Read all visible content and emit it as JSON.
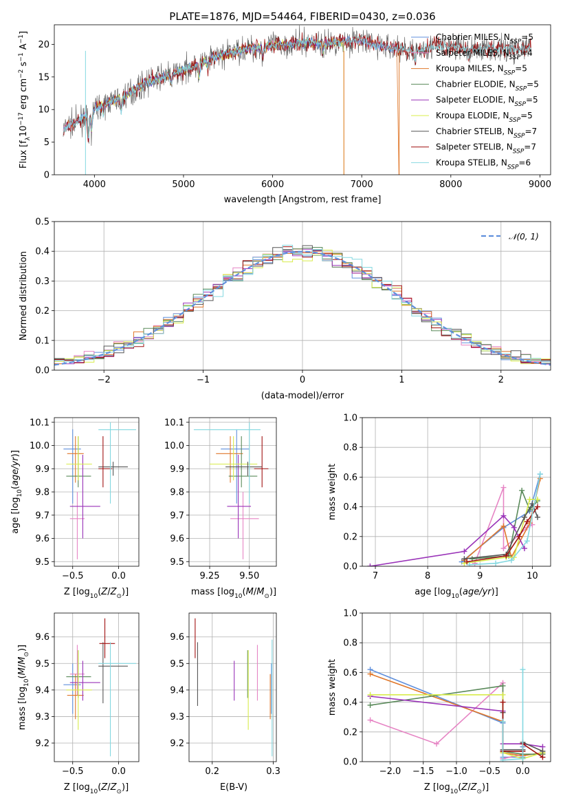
{
  "colors": {
    "chabrier_miles": "#5f8fdc",
    "salpeter_miles": "#e684c4",
    "kroupa_miles": "#e0772a",
    "chabrier_elodie": "#5a8a5a",
    "salpeter_elodie": "#9932b8",
    "kroupa_elodie": "#d8ec4a",
    "chabrier_stelib": "#555555",
    "salpeter_stelib": "#a01010",
    "kroupa_stelib": "#84d8e0"
  },
  "chart_data": [
    {
      "id": "spectrum",
      "type": "line",
      "title": "PLATE=1876, MJD=54464, FIBERID=0430, z=0.036",
      "xlabel": "wavelength [Angstrom, rest frame]",
      "ylabel": "Flux [f_λ 10^-17 erg cm^-2 s^-1 A^-1]",
      "xlim": [
        3550,
        9120
      ],
      "ylim": [
        0,
        23
      ],
      "xticks": [
        "4000",
        "5000",
        "6000",
        "7000",
        "8000",
        "9000"
      ],
      "yticks": [
        "0",
        "5",
        "10",
        "15",
        "20"
      ],
      "grid": false,
      "legend_position": "right",
      "legend": [
        {
          "name": "Chabrier MILES, N_SSP=5",
          "base": "Chabrier MILES, N",
          "sub": "SSP",
          "tail": "=5",
          "color_key": "chabrier_miles"
        },
        {
          "name": "Salpeter MILES, N_SSP=4",
          "base": "Salpeter MILES, N",
          "sub": "SSP",
          "tail": "=4",
          "color_key": "salpeter_miles"
        },
        {
          "name": "Kroupa MILES, N_SSP=5",
          "base": "Kroupa MILES, N",
          "sub": "SSP",
          "tail": "=5",
          "color_key": "kroupa_miles"
        },
        {
          "name": "Chabrier ELODIE, N_SSP=5",
          "base": "Chabrier ELODIE, N",
          "sub": "SSP",
          "tail": "=5",
          "color_key": "chabrier_elodie"
        },
        {
          "name": "Salpeter ELODIE, N_SSP=5",
          "base": "Salpeter ELODIE, N",
          "sub": "SSP",
          "tail": "=5",
          "color_key": "salpeter_elodie"
        },
        {
          "name": "Kroupa ELODIE, N_SSP=5",
          "base": "Kroupa ELODIE, N",
          "sub": "SSP",
          "tail": "=5",
          "color_key": "kroupa_elodie"
        },
        {
          "name": "Chabrier STELIB, N_SSP=7",
          "base": "Chabrier STELIB, N",
          "sub": "SSP",
          "tail": "=7",
          "color_key": "chabrier_stelib"
        },
        {
          "name": "Salpeter STELIB, N_SSP=7",
          "base": "Salpeter STELIB, N",
          "sub": "SSP",
          "tail": "=7",
          "color_key": "salpeter_stelib"
        },
        {
          "name": "Kroupa STELIB, N_SSP=6",
          "base": "Kroupa STELIB, N",
          "sub": "SSP",
          "tail": "=6",
          "color_key": "kroupa_stelib"
        }
      ],
      "continuum": {
        "wavelength": [
          3650,
          3700,
          3800,
          3900,
          4000,
          4100,
          4200,
          4300,
          4400,
          4500,
          4600,
          4800,
          5000,
          5200,
          5400,
          5600,
          5800,
          6000,
          6200,
          6400,
          6600,
          6800,
          7000,
          7200,
          7400,
          7600,
          7800,
          8000,
          8200,
          8400,
          8600,
          8900
        ],
        "flux": [
          6.8,
          7.5,
          8.0,
          9.0,
          10.2,
          10.8,
          11.4,
          11.8,
          12.6,
          13.4,
          14.2,
          15.2,
          16.0,
          17.2,
          18.2,
          19.0,
          19.5,
          19.8,
          20.0,
          20.3,
          20.1,
          20.5,
          20.6,
          19.8,
          19.4,
          19.0,
          19.7,
          19.6,
          19.2,
          19.4,
          19.2,
          19.4
        ]
      }
    },
    {
      "id": "residuals",
      "type": "line",
      "xlabel": "(data-model)/error",
      "ylabel": "Normed distribution",
      "xlim": [
        -2.5,
        2.5
      ],
      "ylim": [
        0,
        0.5
      ],
      "xticks": [
        "−2",
        "−1",
        "0",
        "1",
        "2"
      ],
      "yticks": [
        "0.0",
        "0.1",
        "0.2",
        "0.3",
        "0.4",
        "0.5"
      ],
      "grid": true,
      "legend_position": "top-right",
      "legend": [
        {
          "name": "𝒩(0, 1)"
        }
      ],
      "reference_curve": "normal(0,1)"
    },
    {
      "id": "age_vs_Z",
      "type": "scatter",
      "xlabel": "Z [log10(Z/Z⊙)]",
      "ylabel": "age [log10(age/yr)]",
      "xlim": [
        -0.7,
        0.22
      ],
      "ylim": [
        9.48,
        10.12
      ],
      "xticks": [
        "−0.5",
        "0.0"
      ],
      "yticks": [
        "9.5",
        "9.6",
        "9.7",
        "9.8",
        "9.9",
        "10.0",
        "10.1"
      ],
      "grid": true,
      "points": [
        {
          "color_key": "chabrier_miles",
          "x": -0.5,
          "xlo": -0.6,
          "xhi": -0.41,
          "y": 9.985,
          "ylo": 9.75,
          "yhi": 10.07
        },
        {
          "color_key": "salpeter_miles",
          "x": -0.45,
          "xlo": -0.53,
          "xhi": -0.37,
          "y": 9.685,
          "ylo": 9.51,
          "yhi": 9.8
        },
        {
          "color_key": "kroupa_miles",
          "x": -0.47,
          "xlo": -0.56,
          "xhi": -0.38,
          "y": 9.965,
          "ylo": 9.84,
          "yhi": 10.04
        },
        {
          "color_key": "chabrier_elodie",
          "x": -0.44,
          "xlo": -0.57,
          "xhi": -0.3,
          "y": 9.868,
          "ylo": 9.82,
          "yhi": 10.04
        },
        {
          "color_key": "salpeter_elodie",
          "x": -0.39,
          "xlo": -0.53,
          "xhi": -0.2,
          "y": 9.738,
          "ylo": 9.6,
          "yhi": 9.96
        },
        {
          "color_key": "kroupa_elodie",
          "x": -0.44,
          "xlo": -0.57,
          "xhi": -0.29,
          "y": 9.92,
          "ylo": 9.85,
          "yhi": 10.04
        },
        {
          "color_key": "chabrier_stelib",
          "x": -0.06,
          "xlo": -0.22,
          "xhi": 0.1,
          "y": 9.908,
          "ylo": 9.87,
          "yhi": 9.93
        },
        {
          "color_key": "salpeter_stelib",
          "x": -0.17,
          "xlo": -0.22,
          "xhi": -0.07,
          "y": 9.9,
          "ylo": 9.82,
          "yhi": 10.04
        },
        {
          "color_key": "kroupa_stelib",
          "x": -0.09,
          "xlo": -0.22,
          "xhi": 0.19,
          "y": 10.068,
          "ylo": 9.75,
          "yhi": 10.1
        }
      ]
    },
    {
      "id": "age_vs_mass",
      "type": "scatter",
      "xlabel": "mass [log10(M/M⊙)]",
      "ylabel": "",
      "xlim": [
        9.12,
        9.67
      ],
      "ylim": [
        9.48,
        10.12
      ],
      "xticks": [
        "9.25",
        "9.50"
      ],
      "yticks": [
        "9.5",
        "9.6",
        "9.7",
        "9.8",
        "9.9",
        "10.0",
        "10.1"
      ],
      "grid": true,
      "points": [
        {
          "color_key": "chabrier_miles",
          "x": 9.42,
          "xlo": 9.32,
          "xhi": 9.5,
          "y": 9.985,
          "ylo": 9.75,
          "yhi": 10.07
        },
        {
          "color_key": "salpeter_miles",
          "x": 9.46,
          "xlo": 9.38,
          "xhi": 9.56,
          "y": 9.685,
          "ylo": 9.51,
          "yhi": 9.8
        },
        {
          "color_key": "kroupa_miles",
          "x": 9.38,
          "xlo": 9.29,
          "xhi": 9.46,
          "y": 9.965,
          "ylo": 9.84,
          "yhi": 10.04
        },
        {
          "color_key": "chabrier_elodie",
          "x": 9.45,
          "xlo": 9.37,
          "xhi": 9.55,
          "y": 9.868,
          "ylo": 9.82,
          "yhi": 10.04
        },
        {
          "color_key": "salpeter_elodie",
          "x": 9.43,
          "xlo": 9.36,
          "xhi": 9.51,
          "y": 9.738,
          "ylo": 9.6,
          "yhi": 9.96
        },
        {
          "color_key": "kroupa_elodie",
          "x": 9.4,
          "xlo": 9.25,
          "xhi": 9.55,
          "y": 9.92,
          "ylo": 9.85,
          "yhi": 10.04
        },
        {
          "color_key": "chabrier_stelib",
          "x": 9.49,
          "xlo": 9.35,
          "xhi": 9.58,
          "y": 9.908,
          "ylo": 9.87,
          "yhi": 9.93
        },
        {
          "color_key": "salpeter_stelib",
          "x": 9.58,
          "xlo": 9.53,
          "xhi": 9.62,
          "y": 9.9,
          "ylo": 9.82,
          "yhi": 10.04
        },
        {
          "color_key": "kroupa_stelib",
          "x": 9.5,
          "xlo": 9.15,
          "xhi": 9.57,
          "y": 10.068,
          "ylo": 9.75,
          "yhi": 10.1
        }
      ]
    },
    {
      "id": "weight_vs_age",
      "type": "line",
      "xlabel": "age [log10(age/yr)]",
      "ylabel": "mass weight",
      "xlim": [
        6.75,
        10.35
      ],
      "ylim": [
        0,
        1
      ],
      "xticks": [
        "7",
        "8",
        "9",
        "10"
      ],
      "yticks": [
        "0.0",
        "0.2",
        "0.4",
        "0.6",
        "0.8",
        "1.0"
      ],
      "grid": true,
      "series": [
        {
          "color_key": "chabrier_miles",
          "x": [
            8.65,
            9.45,
            9.95,
            10.15
          ],
          "y": [
            0.03,
            0.26,
            0.37,
            0.62
          ]
        },
        {
          "color_key": "salpeter_miles",
          "x": [
            8.9,
            9.45,
            9.45,
            9.9,
            10.0
          ],
          "y": [
            0.02,
            0.53,
            0.12,
            0.26,
            0.28
          ]
        },
        {
          "color_key": "kroupa_miles",
          "x": [
            8.7,
            9.45,
            9.6,
            9.95,
            10.15
          ],
          "y": [
            0.04,
            0.27,
            0.06,
            0.29,
            0.59
          ]
        },
        {
          "color_key": "chabrier_elodie",
          "x": [
            8.85,
            9.55,
            9.8,
            9.95,
            10.1
          ],
          "y": [
            0.05,
            0.07,
            0.51,
            0.38,
            0.44
          ]
        },
        {
          "color_key": "salpeter_elodie",
          "x": [
            6.9,
            8.7,
            9.45,
            9.65,
            9.85
          ],
          "y": [
            0.0,
            0.1,
            0.34,
            0.26,
            0.12
          ]
        },
        {
          "color_key": "kroupa_elodie",
          "x": [
            8.7,
            9.5,
            9.65,
            9.95,
            10.1
          ],
          "y": [
            0.02,
            0.06,
            0.06,
            0.45,
            0.45
          ]
        },
        {
          "color_key": "chabrier_stelib",
          "x": [
            8.7,
            9.5,
            9.85,
            10.0,
            10.1
          ],
          "y": [
            0.05,
            0.08,
            0.33,
            0.42,
            0.33
          ]
        },
        {
          "color_key": "salpeter_stelib",
          "x": [
            8.75,
            9.5,
            9.75,
            9.9,
            10.1
          ],
          "y": [
            0.03,
            0.07,
            0.2,
            0.3,
            0.4
          ]
        },
        {
          "color_key": "kroupa_stelib",
          "x": [
            8.8,
            9.3,
            9.6,
            9.9,
            10.15
          ],
          "y": [
            0.01,
            0.02,
            0.04,
            0.17,
            0.62
          ]
        }
      ]
    },
    {
      "id": "mass_vs_Z",
      "type": "scatter",
      "xlabel": "Z [log10(Z/Z⊙)]",
      "ylabel": "mass [log10(M/M⊙)]",
      "xlim": [
        -0.7,
        0.22
      ],
      "ylim": [
        9.13,
        9.69
      ],
      "xticks": [
        "−0.5",
        "0.0"
      ],
      "yticks": [
        "9.2",
        "9.3",
        "9.4",
        "9.5",
        "9.6"
      ],
      "grid": true,
      "points": [
        {
          "color_key": "chabrier_miles",
          "x": -0.5,
          "xlo": -0.6,
          "xhi": -0.41,
          "y": 9.42,
          "ylo": 9.31,
          "yhi": 9.5
        },
        {
          "color_key": "salpeter_miles",
          "x": -0.45,
          "xlo": -0.53,
          "xhi": -0.37,
          "y": 9.46,
          "ylo": 9.38,
          "yhi": 9.57
        },
        {
          "color_key": "kroupa_miles",
          "x": -0.47,
          "xlo": -0.56,
          "xhi": -0.38,
          "y": 9.38,
          "ylo": 9.29,
          "yhi": 9.46
        },
        {
          "color_key": "chabrier_elodie",
          "x": -0.44,
          "xlo": -0.57,
          "xhi": -0.3,
          "y": 9.45,
          "ylo": 9.37,
          "yhi": 9.55
        },
        {
          "color_key": "salpeter_elodie",
          "x": -0.39,
          "xlo": -0.53,
          "xhi": -0.2,
          "y": 9.428,
          "ylo": 9.36,
          "yhi": 9.51
        },
        {
          "color_key": "kroupa_elodie",
          "x": -0.44,
          "xlo": -0.57,
          "xhi": -0.29,
          "y": 9.4,
          "ylo": 9.25,
          "yhi": 9.55
        },
        {
          "color_key": "chabrier_stelib",
          "x": -0.17,
          "xlo": -0.22,
          "xhi": 0.1,
          "y": 9.49,
          "ylo": 9.35,
          "yhi": 9.58
        },
        {
          "color_key": "salpeter_stelib",
          "x": -0.15,
          "xlo": -0.21,
          "xhi": -0.04,
          "y": 9.575,
          "ylo": 9.52,
          "yhi": 9.67
        },
        {
          "color_key": "kroupa_stelib",
          "x": -0.09,
          "xlo": -0.22,
          "xhi": 0.19,
          "y": 9.5,
          "ylo": 9.15,
          "yhi": 9.58
        }
      ]
    },
    {
      "id": "mass_vs_ebv",
      "type": "scatter",
      "xlabel": "E(B-V)",
      "ylabel": "",
      "xlim": [
        0.162,
        0.305
      ],
      "ylim": [
        9.13,
        9.69
      ],
      "xticks": [
        "0.2",
        "0.3"
      ],
      "yticks": [
        "9.2",
        "9.3",
        "9.4",
        "9.5",
        "9.6"
      ],
      "grid": true,
      "points": [
        {
          "color_key": "chabrier_miles",
          "x": 0.297,
          "y": 9.42,
          "ylo": 9.31,
          "yhi": 9.5
        },
        {
          "color_key": "salpeter_miles",
          "x": 0.274,
          "y": 9.46,
          "ylo": 9.36,
          "yhi": 9.57
        },
        {
          "color_key": "kroupa_miles",
          "x": 0.295,
          "y": 9.38,
          "ylo": 9.29,
          "yhi": 9.46
        },
        {
          "color_key": "chabrier_elodie",
          "x": 0.258,
          "y": 9.45,
          "ylo": 9.37,
          "yhi": 9.55
        },
        {
          "color_key": "salpeter_elodie",
          "x": 0.236,
          "y": 9.428,
          "ylo": 9.36,
          "yhi": 9.51
        },
        {
          "color_key": "kroupa_elodie",
          "x": 0.259,
          "y": 9.4,
          "ylo": 9.25,
          "yhi": 9.55
        },
        {
          "color_key": "chabrier_stelib",
          "x": 0.176,
          "y": 9.49,
          "ylo": 9.34,
          "yhi": 9.58
        },
        {
          "color_key": "salpeter_stelib",
          "x": 0.172,
          "y": 9.575,
          "ylo": 9.52,
          "yhi": 9.67
        },
        {
          "color_key": "kroupa_stelib",
          "x": 0.298,
          "y": 9.5,
          "ylo": 9.15,
          "yhi": 9.59
        }
      ]
    },
    {
      "id": "weight_vs_Z",
      "type": "line",
      "xlabel": "Z [log10(Z/Z⊙)]",
      "ylabel": "mass weight",
      "xlim": [
        -2.42,
        0.42
      ],
      "ylim": [
        0,
        1
      ],
      "xticks": [
        "−2.0",
        "−1.5",
        "−1.0",
        "−0.5",
        "0.0"
      ],
      "yticks": [
        "0.0",
        "0.2",
        "0.4",
        "0.6",
        "0.8",
        "1.0"
      ],
      "grid": true,
      "series": [
        {
          "color_key": "chabrier_miles",
          "x": [
            -2.3,
            -0.3,
            -0.3,
            0.0,
            0.0
          ],
          "y": [
            0.62,
            0.26,
            0.03,
            0.03,
            0.1
          ]
        },
        {
          "color_key": "salpeter_miles",
          "x": [
            -2.3,
            -1.3,
            -0.3,
            -0.3,
            0.0
          ],
          "y": [
            0.28,
            0.12,
            0.53,
            0.02,
            0.05
          ]
        },
        {
          "color_key": "kroupa_miles",
          "x": [
            -2.3,
            -0.3,
            -0.3,
            0.0,
            0.3
          ],
          "y": [
            0.59,
            0.27,
            0.06,
            0.04,
            0.06
          ]
        },
        {
          "color_key": "chabrier_elodie",
          "x": [
            -2.3,
            -0.3,
            -0.3,
            0.0,
            0.3
          ],
          "y": [
            0.38,
            0.51,
            0.07,
            0.05,
            0.05
          ]
        },
        {
          "color_key": "salpeter_elodie",
          "x": [
            -2.3,
            -0.3,
            -0.3,
            0.0,
            0.3
          ],
          "y": [
            0.44,
            0.34,
            0.12,
            0.12,
            0.1
          ]
        },
        {
          "color_key": "kroupa_elodie",
          "x": [
            -2.3,
            -0.3,
            -0.3,
            0.0,
            0.3
          ],
          "y": [
            0.45,
            0.45,
            0.06,
            0.02,
            0.06
          ]
        },
        {
          "color_key": "chabrier_stelib",
          "x": [
            -0.3,
            -0.3,
            0.0,
            0.0,
            0.3
          ],
          "y": [
            0.33,
            0.08,
            0.08,
            0.13,
            0.07
          ]
        },
        {
          "color_key": "salpeter_stelib",
          "x": [
            -0.3,
            -0.3,
            0.0,
            0.0,
            0.3
          ],
          "y": [
            0.4,
            0.07,
            0.07,
            0.12,
            0.03
          ]
        },
        {
          "color_key": "kroupa_stelib",
          "x": [
            -0.3,
            -0.3,
            0.0,
            0.0
          ],
          "y": [
            0.27,
            0.01,
            0.02,
            0.62
          ]
        }
      ]
    }
  ]
}
